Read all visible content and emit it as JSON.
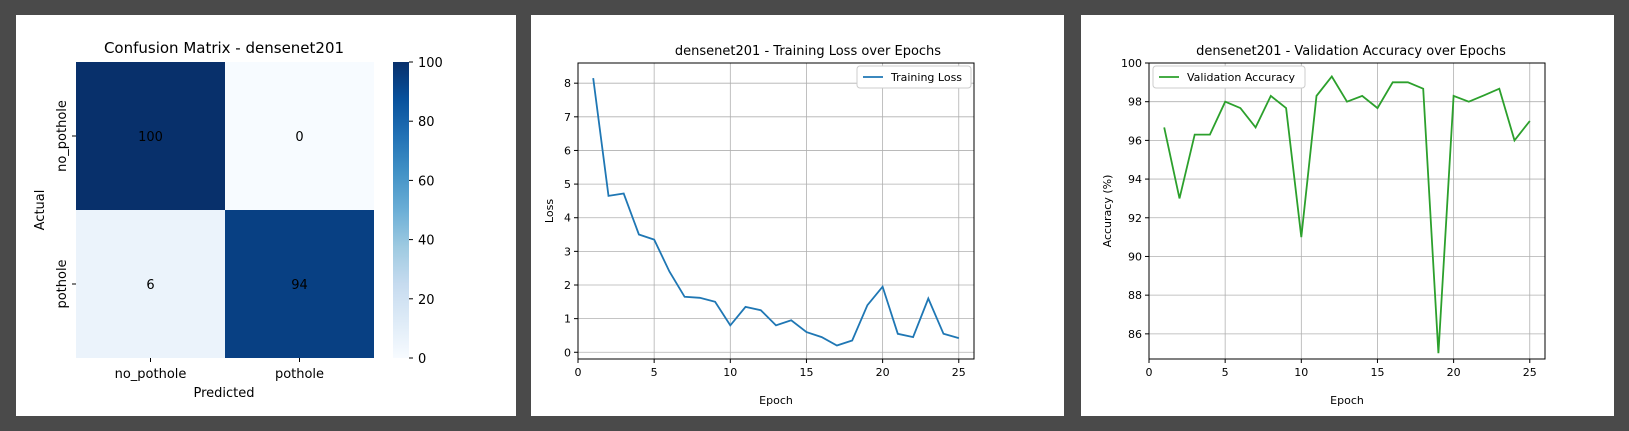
{
  "chart_data": [
    {
      "type": "heatmap",
      "title": "Confusion Matrix - densenet201",
      "xlabel": "Predicted",
      "ylabel": "Actual",
      "x_categories": [
        "no_pothole",
        "pothole"
      ],
      "y_categories": [
        "no_pothole",
        "pothole"
      ],
      "values": [
        [
          100,
          0
        ],
        [
          6,
          94
        ]
      ],
      "colorbar": {
        "min": 0,
        "max": 100,
        "ticks": [
          0,
          20,
          40,
          60,
          80,
          100
        ]
      },
      "colormap": "Blues"
    },
    {
      "type": "line",
      "title": "densenet201 - Training Loss over Epochs",
      "xlabel": "Epoch",
      "ylabel": "Loss",
      "legend": "top-right",
      "grid": true,
      "xlim": [
        0,
        26
      ],
      "ylim": [
        -0.2,
        8.6
      ],
      "xticks": [
        0,
        5,
        10,
        15,
        20,
        25
      ],
      "yticks": [
        0,
        1,
        2,
        3,
        4,
        5,
        6,
        7,
        8
      ],
      "series": [
        {
          "name": "Training Loss",
          "color": "#1f77b4",
          "x": [
            1,
            2,
            3,
            4,
            5,
            6,
            7,
            8,
            9,
            10,
            11,
            12,
            13,
            14,
            15,
            16,
            17,
            18,
            19,
            20,
            21,
            22,
            23,
            24,
            25
          ],
          "y": [
            8.15,
            4.65,
            4.72,
            3.5,
            3.35,
            2.4,
            1.65,
            1.62,
            1.5,
            0.8,
            1.35,
            1.25,
            0.8,
            0.95,
            0.6,
            0.45,
            0.2,
            0.35,
            1.4,
            1.95,
            0.55,
            0.45,
            1.6,
            0.55,
            0.42
          ]
        }
      ]
    },
    {
      "type": "line",
      "title": "densenet201 - Validation Accuracy over Epochs",
      "xlabel": "Epoch",
      "ylabel": "Accuracy (%)",
      "legend": "top-left",
      "grid": true,
      "xlim": [
        0,
        26
      ],
      "ylim": [
        84.7,
        100
      ],
      "xticks": [
        0,
        5,
        10,
        15,
        20,
        25
      ],
      "yticks": [
        86,
        88,
        90,
        92,
        94,
        96,
        98,
        100
      ],
      "series": [
        {
          "name": "Validation Accuracy",
          "color": "#2ca02c",
          "x": [
            1,
            2,
            3,
            4,
            5,
            6,
            7,
            8,
            9,
            10,
            11,
            12,
            13,
            14,
            15,
            16,
            17,
            18,
            19,
            20,
            21,
            22,
            23,
            24,
            25
          ],
          "y": [
            96.67,
            93.0,
            96.3,
            96.3,
            98.0,
            97.67,
            96.67,
            98.3,
            97.67,
            91.0,
            98.3,
            99.3,
            98.0,
            98.3,
            97.67,
            99.0,
            99.0,
            98.67,
            85.0,
            98.3,
            98.0,
            98.33,
            98.67,
            96.0,
            97.0
          ]
        }
      ]
    }
  ]
}
